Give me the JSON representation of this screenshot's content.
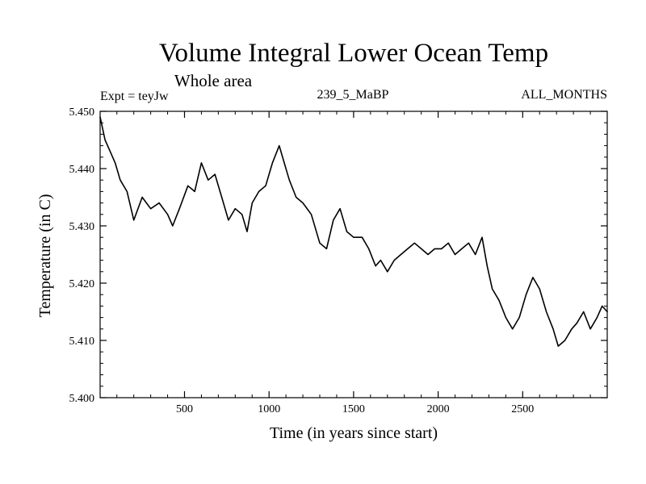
{
  "chart_data": {
    "type": "line",
    "title": "Volume Integral Lower Ocean Temp",
    "subtitle": "Whole area",
    "expt_label": "Expt = teyJw",
    "run_label": "239_5_MaBP",
    "months_label": "ALL_MONTHS",
    "xlabel": "Time (in years since start)",
    "ylabel": "Temperature (in C)",
    "xlim": [
      1,
      3000
    ],
    "ylim": [
      5.4,
      5.45
    ],
    "x_ticks": [
      500,
      1000,
      1500,
      2000,
      2500
    ],
    "x_tick_labels": [
      "500",
      "1000",
      "1500",
      "2000",
      "2500"
    ],
    "y_ticks": [
      5.4,
      5.41,
      5.42,
      5.43,
      5.44,
      5.45
    ],
    "y_tick_labels": [
      "5.400",
      "5.410",
      "5.420",
      "5.430",
      "5.440",
      "5.450"
    ],
    "grid": false,
    "line_color": "#000000",
    "series": [
      {
        "name": "Volume integral lower ocean temperature",
        "x": [
          1,
          30,
          60,
          90,
          120,
          160,
          200,
          250,
          300,
          350,
          400,
          430,
          470,
          520,
          560,
          600,
          640,
          680,
          720,
          760,
          800,
          840,
          870,
          900,
          940,
          980,
          1020,
          1060,
          1090,
          1120,
          1160,
          1200,
          1250,
          1300,
          1340,
          1380,
          1420,
          1460,
          1500,
          1550,
          1590,
          1630,
          1660,
          1700,
          1740,
          1780,
          1820,
          1860,
          1900,
          1940,
          1980,
          2020,
          2060,
          2100,
          2140,
          2180,
          2220,
          2260,
          2290,
          2320,
          2360,
          2400,
          2440,
          2480,
          2520,
          2560,
          2600,
          2640,
          2680,
          2710,
          2750,
          2790,
          2820,
          2860,
          2900,
          2940,
          2970,
          3000
        ],
        "y": [
          5.449,
          5.445,
          5.443,
          5.441,
          5.438,
          5.436,
          5.431,
          5.435,
          5.433,
          5.434,
          5.432,
          5.43,
          5.433,
          5.437,
          5.436,
          5.441,
          5.438,
          5.439,
          5.435,
          5.431,
          5.433,
          5.432,
          5.429,
          5.434,
          5.436,
          5.437,
          5.441,
          5.444,
          5.441,
          5.438,
          5.435,
          5.434,
          5.432,
          5.427,
          5.426,
          5.431,
          5.433,
          5.429,
          5.428,
          5.428,
          5.426,
          5.423,
          5.424,
          5.422,
          5.424,
          5.425,
          5.426,
          5.427,
          5.426,
          5.425,
          5.426,
          5.426,
          5.427,
          5.425,
          5.426,
          5.427,
          5.425,
          5.428,
          5.423,
          5.419,
          5.417,
          5.414,
          5.412,
          5.414,
          5.418,
          5.421,
          5.419,
          5.415,
          5.412,
          5.409,
          5.41,
          5.412,
          5.413,
          5.415,
          5.412,
          5.414,
          5.416,
          5.415
        ]
      }
    ]
  }
}
